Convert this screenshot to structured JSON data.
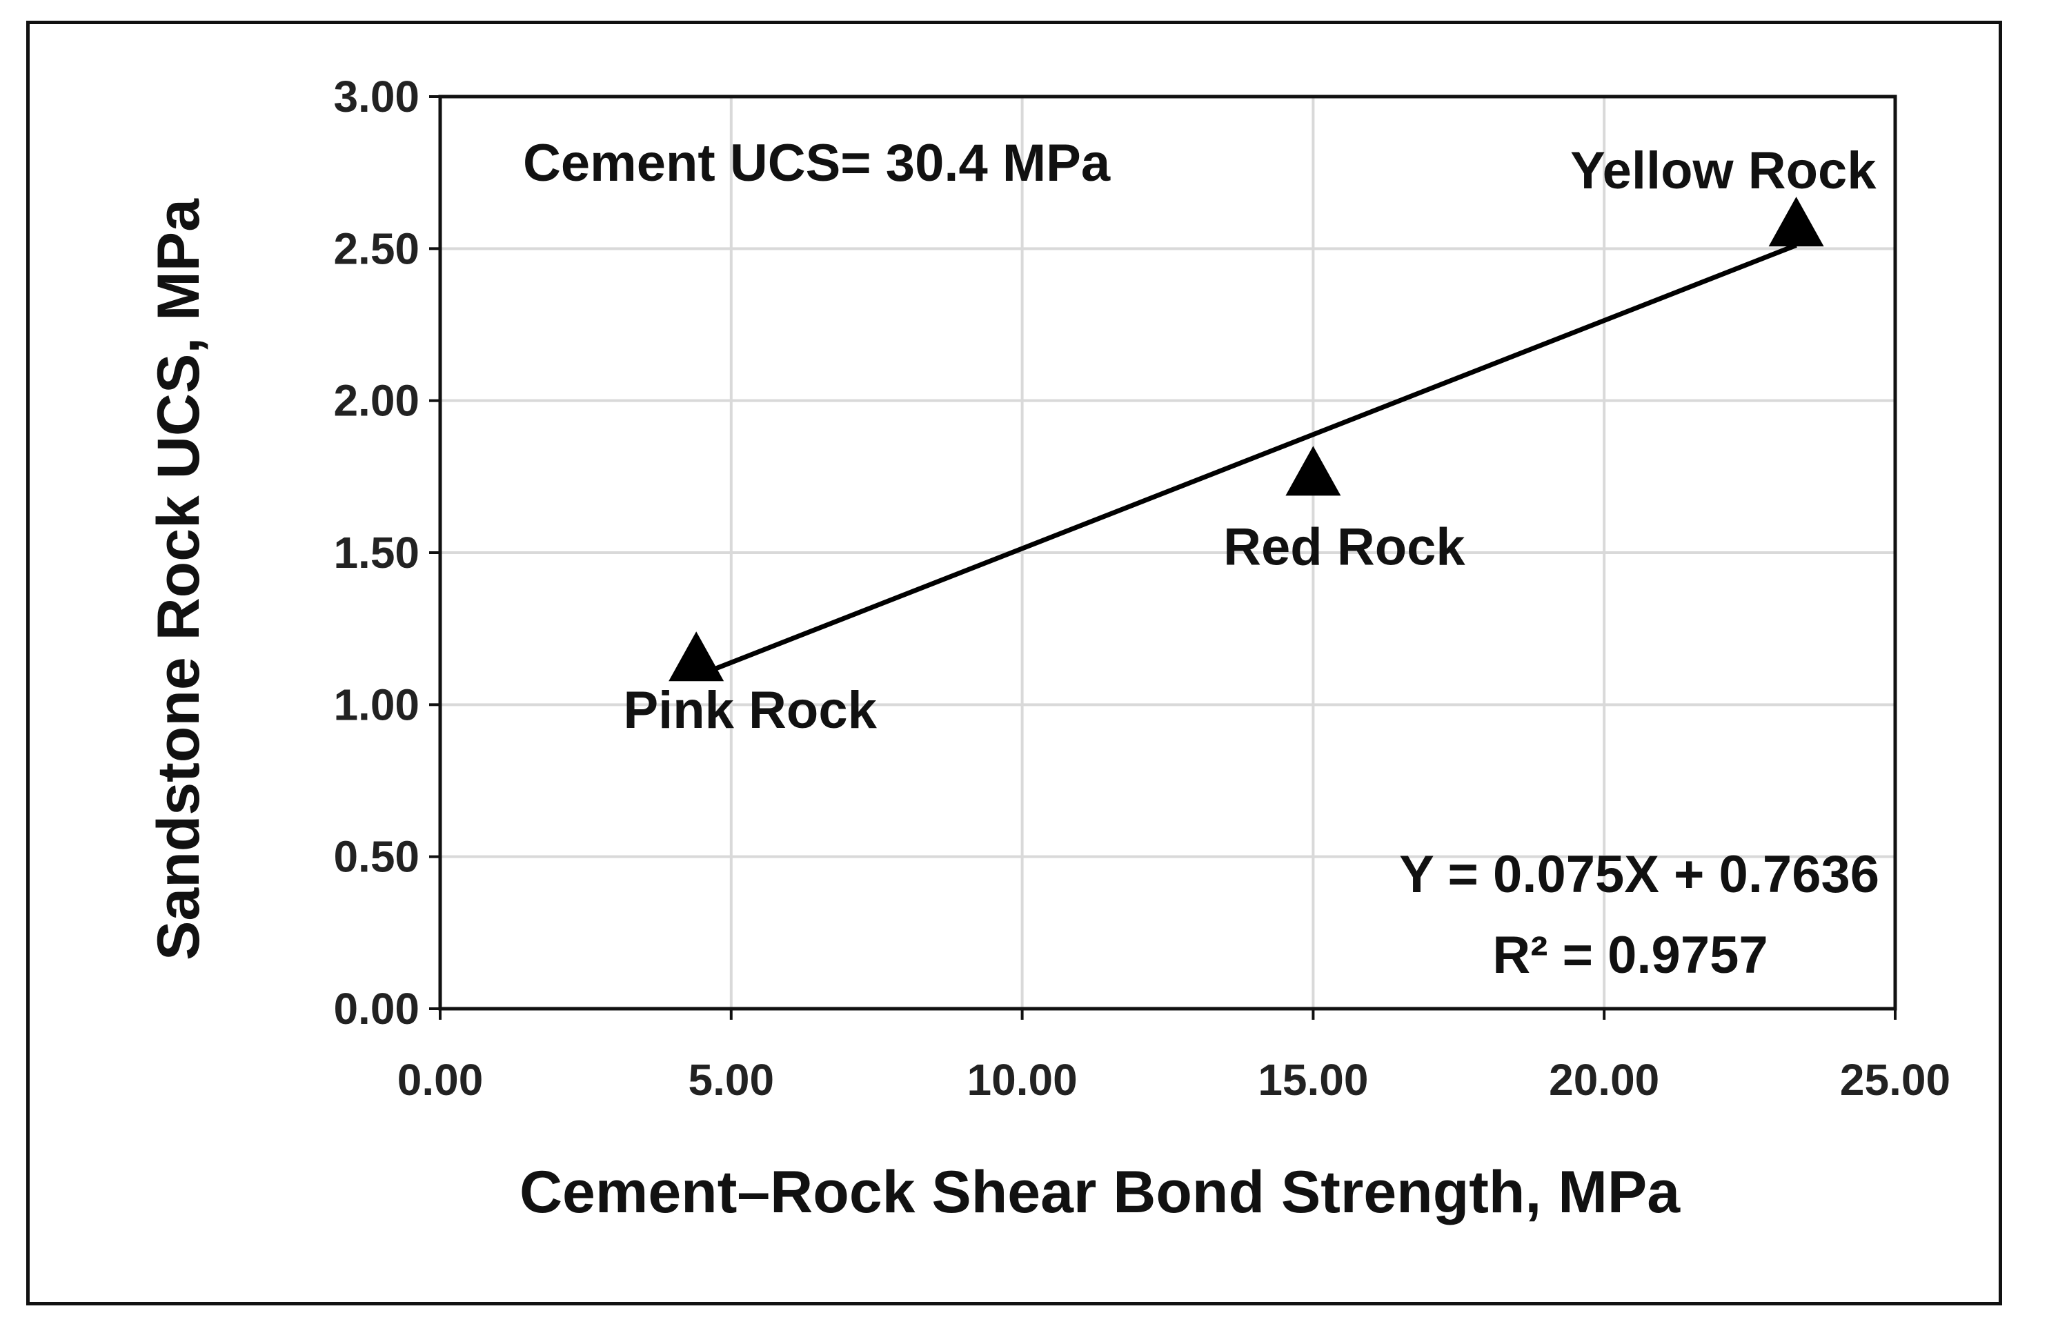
{
  "chart_data": {
    "type": "scatter",
    "xlabel": "Cement–Rock Shear Bond Strength, MPa",
    "ylabel": "Sandstone Rock UCS, MPa",
    "xlim": [
      0,
      25
    ],
    "ylim": [
      0,
      3
    ],
    "x_ticks": [
      "0.00",
      "5.00",
      "10.00",
      "15.00",
      "20.00",
      "25.00"
    ],
    "y_ticks": [
      "0.00",
      "0.50",
      "1.00",
      "1.50",
      "2.00",
      "2.50",
      "3.00"
    ],
    "grid": true,
    "marker": "triangle",
    "marker_color": "#000000",
    "points": [
      {
        "label": "Pink Rock",
        "x": 4.4,
        "y": 1.15
      },
      {
        "label": "Red Rock",
        "x": 15.0,
        "y": 1.76
      },
      {
        "label": "Yellow Rock",
        "x": 23.3,
        "y": 2.58
      }
    ],
    "trendline": {
      "slope": 0.075,
      "intercept": 0.7636,
      "x_start": 4.4,
      "x_end": 23.3
    },
    "annotations": {
      "cement_ucs": "Cement UCS= 30.4 MPa",
      "equation": "Y = 0.075X + 0.7636",
      "r_squared": "R² = 0.9757"
    }
  }
}
